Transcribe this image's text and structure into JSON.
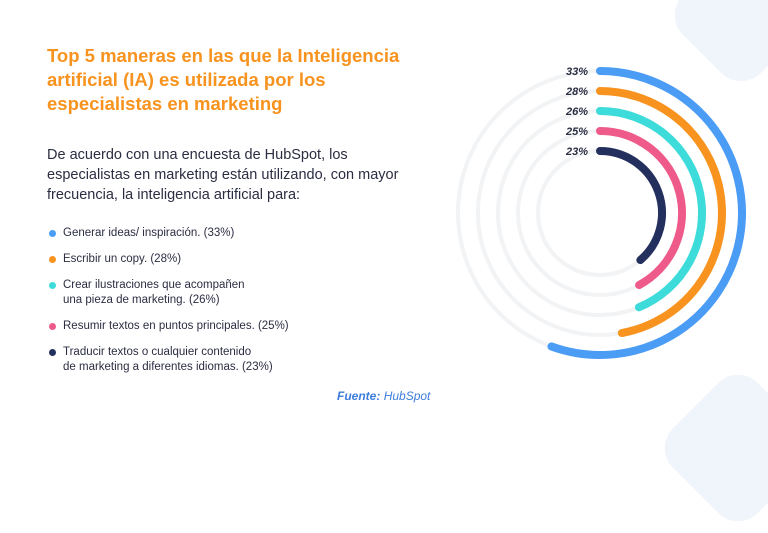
{
  "title": "Top 5 maneras en las que la Inteligencia artificial (IA) es utilizada por los especialistas en marketing",
  "intro": "De acuerdo con una encuesta de HubSpot, los especialistas en marketing están utilizando, con mayor frecuencia, la inteligencia artificial para:",
  "legend": [
    {
      "text": "Generar ideas/ inspiración. (33%)",
      "color": "#4b9cf5"
    },
    {
      "text": "Escribir un copy. (28%)",
      "color": "#f7931e"
    },
    {
      "text": "Crear ilustraciones que acompañen\nuna pieza de marketing. (26%)",
      "color": "#3ddbd9"
    },
    {
      "text": "Resumir textos en puntos principales. (25%)",
      "color": "#ee5a8a"
    },
    {
      "text": "Traducir textos o cualquier contenido\nde marketing a diferentes idiomas. (23%)",
      "color": "#23305e"
    }
  ],
  "source": {
    "label": "Fuente:",
    "name": "HubSpot"
  },
  "colors": {
    "title": "#f7931e",
    "track": "#f2f3f5"
  },
  "chart_data": {
    "type": "radial-bar",
    "title": "Top 5 maneras en las que la Inteligencia artificial (IA) es utilizada por los especialistas en marketing",
    "categories": [
      "Generar ideas/ inspiración.",
      "Escribir un copy.",
      "Crear ilustraciones que acompañen una pieza de marketing.",
      "Resumir textos en puntos principales.",
      "Traducir textos o cualquier contenido de marketing a diferentes idiomas."
    ],
    "values": [
      33,
      28,
      26,
      25,
      23
    ],
    "labels": [
      "33%",
      "28%",
      "26%",
      "25%",
      "23%"
    ],
    "colors": [
      "#4b9cf5",
      "#f7931e",
      "#3ddbd9",
      "#ee5a8a",
      "#23305e"
    ],
    "unit": "%"
  }
}
